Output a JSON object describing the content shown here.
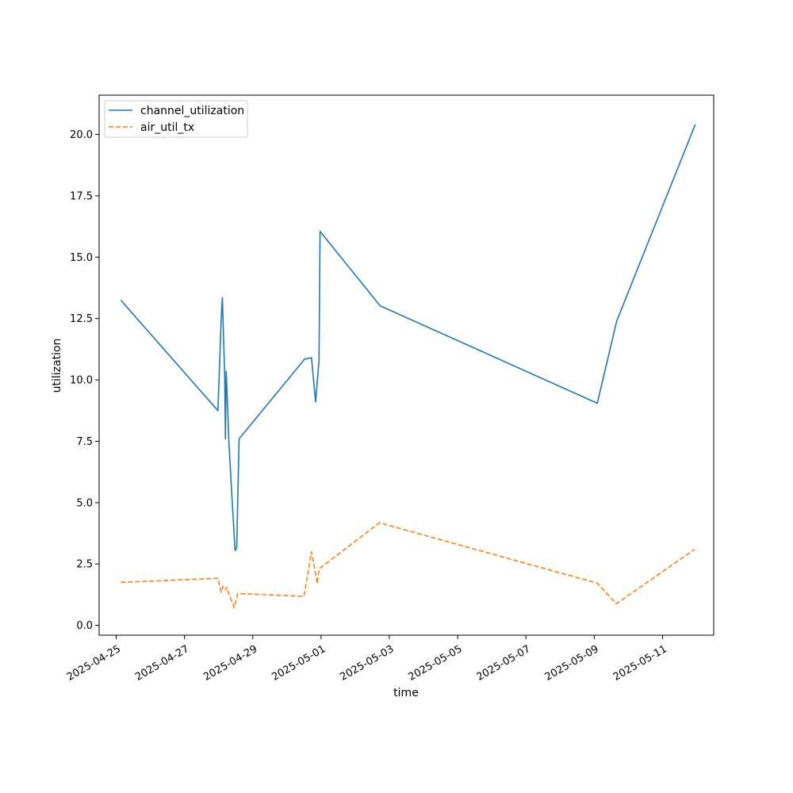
{
  "chart_data": {
    "type": "line",
    "title": "",
    "xlabel": "time",
    "ylabel": "utilization",
    "x_scale": "date",
    "xlim": [
      "2025-04-24T12:00",
      "2025-05-12T12:00"
    ],
    "ylim": [
      -0.4,
      21.6
    ],
    "xticks": [
      "2025-04-25",
      "2025-04-27",
      "2025-04-29",
      "2025-05-01",
      "2025-05-03",
      "2025-05-05",
      "2025-05-07",
      "2025-05-09",
      "2025-05-11"
    ],
    "yticks": [
      0.0,
      2.5,
      5.0,
      7.5,
      10.0,
      12.5,
      15.0,
      17.5,
      20.0
    ],
    "ytick_labels": [
      "0.0",
      "2.5",
      "5.0",
      "7.5",
      "10.0",
      "12.5",
      "15.0",
      "17.5",
      "20.0"
    ],
    "grid": false,
    "legend_position": "top-left",
    "series": [
      {
        "name": "channel_utilization",
        "color": "#1f77b4",
        "line_style": "solid",
        "points": [
          [
            "2025-04-25T03:12",
            13.25
          ],
          [
            "2025-04-27T23:31",
            8.75
          ],
          [
            "2025-04-28T01:55",
            12.6
          ],
          [
            "2025-04-28T02:38",
            13.35
          ],
          [
            "2025-04-28T04:19",
            10.1
          ],
          [
            "2025-04-28T04:48",
            7.6
          ],
          [
            "2025-04-28T05:17",
            10.35
          ],
          [
            "2025-04-28T06:29",
            8.7
          ],
          [
            "2025-04-28T07:12",
            7.5
          ],
          [
            "2025-04-28T09:36",
            5.0
          ],
          [
            "2025-04-28T11:31",
            3.05
          ],
          [
            "2025-04-28T12:43",
            3.15
          ],
          [
            "2025-04-28T14:24",
            7.6
          ],
          [
            "2025-04-30T12:29",
            10.85
          ],
          [
            "2025-04-30T17:17",
            10.9
          ],
          [
            "2025-04-30T20:10",
            9.1
          ],
          [
            "2025-04-30T22:34",
            10.8
          ],
          [
            "2025-04-30T23:17",
            16.05
          ],
          [
            "2025-05-02T17:31",
            13.02
          ],
          [
            "2025-05-09T02:10",
            9.05
          ],
          [
            "2025-05-09T15:50",
            12.4
          ],
          [
            "2025-05-11T23:02",
            20.4
          ]
        ]
      },
      {
        "name": "air_util_tx",
        "color": "#ff7f0e",
        "line_style": "dashed",
        "points": [
          [
            "2025-04-25T03:12",
            1.75
          ],
          [
            "2025-04-27T23:31",
            1.92
          ],
          [
            "2025-04-28T01:55",
            1.35
          ],
          [
            "2025-04-28T03:07",
            1.6
          ],
          [
            "2025-04-28T04:48",
            1.45
          ],
          [
            "2025-04-28T05:46",
            1.55
          ],
          [
            "2025-04-28T07:41",
            1.2
          ],
          [
            "2025-04-28T11:02",
            0.72
          ],
          [
            "2025-04-28T13:26",
            1.3
          ],
          [
            "2025-04-30T12:00",
            1.18
          ],
          [
            "2025-04-30T17:17",
            3.0
          ],
          [
            "2025-04-30T21:22",
            1.7
          ],
          [
            "2025-04-30T22:34",
            2.3
          ],
          [
            "2025-05-02T17:02",
            4.18
          ],
          [
            "2025-05-09T02:10",
            1.72
          ],
          [
            "2025-05-09T15:36",
            0.88
          ],
          [
            "2025-05-11T22:34",
            3.1
          ]
        ]
      }
    ]
  }
}
